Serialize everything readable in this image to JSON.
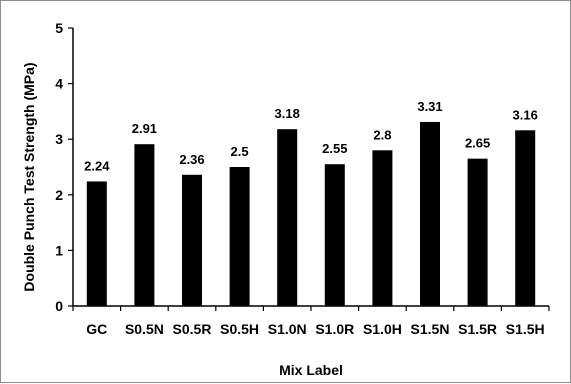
{
  "chart_data": {
    "type": "bar",
    "categories": [
      "GC",
      "S0.5N",
      "S0.5R",
      "S0.5H",
      "S1.0N",
      "S1.0R",
      "S1.0H",
      "S1.5N",
      "S1.5R",
      "S1.5H"
    ],
    "values": [
      2.24,
      2.91,
      2.36,
      2.5,
      3.18,
      2.55,
      2.8,
      3.31,
      2.65,
      3.16
    ],
    "data_labels": [
      "2.24",
      "2.91",
      "2.36",
      "2.5",
      "3.18",
      "2.55",
      "2.8",
      "3.31",
      "2.65",
      "3.16"
    ],
    "title": "",
    "xlabel": "Mix Label",
    "ylabel": "Double Punch Test Strength (MPa)",
    "ylim": [
      0,
      5
    ],
    "yticks": [
      "0",
      "1",
      "2",
      "3",
      "4",
      "5"
    ],
    "grid": false,
    "legend": "none",
    "bar_color": "#000000"
  }
}
